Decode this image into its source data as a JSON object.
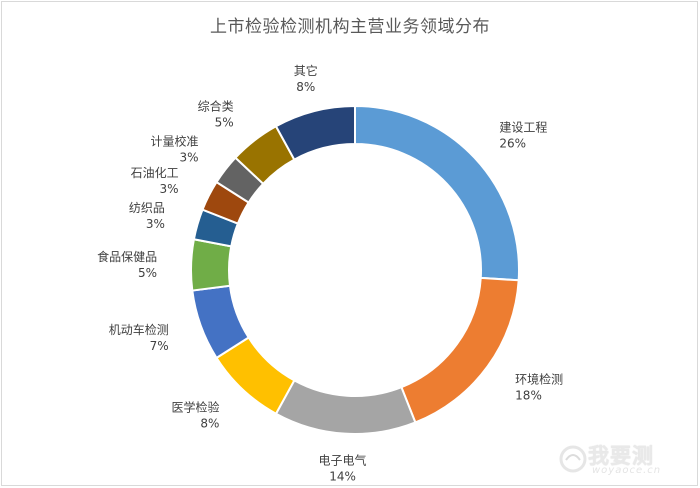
{
  "chart_data": {
    "type": "pie",
    "variant": "donut",
    "title": "上市检验检测机构主营业务领域分布",
    "categories": [
      "建设工程",
      "环境检测",
      "电子电气",
      "医学检验",
      "机动车检测",
      "食品保健品",
      "纺织品",
      "石油化工",
      "计量校准",
      "综合类",
      "其它"
    ],
    "values": [
      26,
      18,
      14,
      8,
      7,
      5,
      3,
      3,
      3,
      5,
      8
    ],
    "value_labels": [
      "26%",
      "18%",
      "14%",
      "8%",
      "7%",
      "5%",
      "3%",
      "3%",
      "3%",
      "5%",
      "8%"
    ],
    "colors": [
      "#5b9bd5",
      "#ed7d31",
      "#a5a5a5",
      "#ffc000",
      "#4472c4",
      "#70ad47",
      "#255e91",
      "#9e480e",
      "#636363",
      "#997300",
      "#264478"
    ],
    "legend": "none",
    "start_angle_deg": 0,
    "direction": "clockwise"
  },
  "watermark": {
    "text": "我要测",
    "subtext": "woyaoce.cn"
  }
}
